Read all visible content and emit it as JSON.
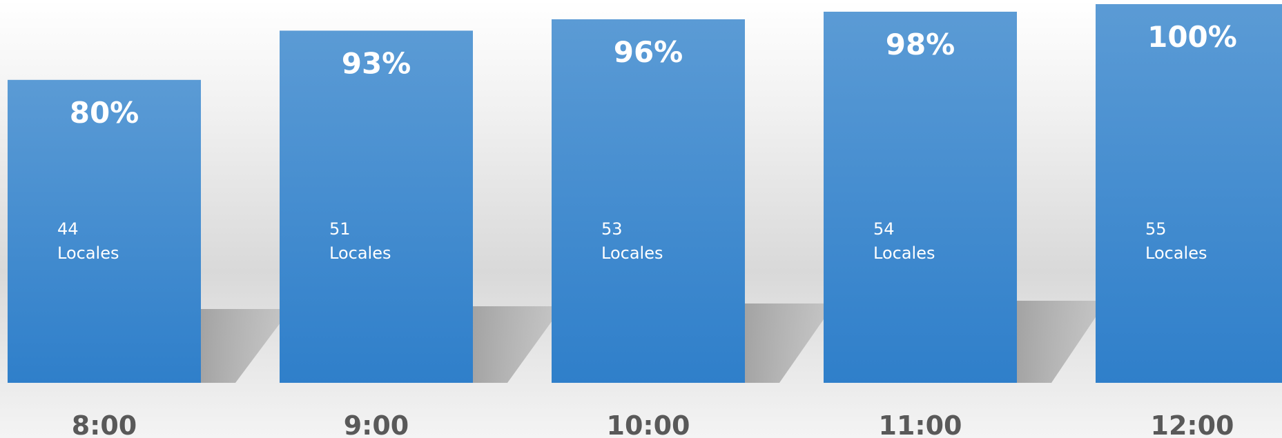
{
  "chart_data": {
    "type": "bar",
    "categories": [
      "8:00",
      "9:00",
      "10:00",
      "11:00",
      "12:00"
    ],
    "values": [
      80,
      93,
      96,
      98,
      100
    ],
    "value_labels": [
      "80%",
      "93%",
      "96%",
      "98%",
      "100%"
    ],
    "counts": [
      "44",
      "51",
      "53",
      "54",
      "55"
    ],
    "count_unit": "Locales",
    "ylim": [
      0,
      100
    ],
    "grid": false,
    "legend": "none",
    "colors": {
      "bar_top": "#5b9bd5",
      "bar_bottom": "#2f7fca",
      "shadow": "#a6a6a6",
      "category_text": "#595959",
      "label_text": "#ffffff"
    }
  }
}
